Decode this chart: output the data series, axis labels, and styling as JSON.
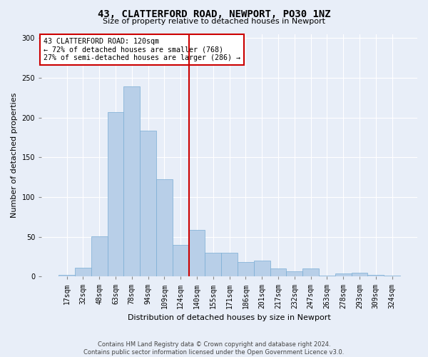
{
  "title": "43, CLATTERFORD ROAD, NEWPORT, PO30 1NZ",
  "subtitle": "Size of property relative to detached houses in Newport",
  "xlabel": "Distribution of detached houses by size in Newport",
  "ylabel": "Number of detached properties",
  "footer_line1": "Contains HM Land Registry data © Crown copyright and database right 2024.",
  "footer_line2": "Contains public sector information licensed under the Open Government Licence v3.0.",
  "annotation_line1": "43 CLATTERFORD ROAD: 120sqm",
  "annotation_line2": "← 72% of detached houses are smaller (768)",
  "annotation_line3": "27% of semi-detached houses are larger (286) →",
  "bar_labels": [
    "17sqm",
    "32sqm",
    "48sqm",
    "63sqm",
    "78sqm",
    "94sqm",
    "109sqm",
    "124sqm",
    "140sqm",
    "155sqm",
    "171sqm",
    "186sqm",
    "201sqm",
    "217sqm",
    "232sqm",
    "247sqm",
    "263sqm",
    "278sqm",
    "293sqm",
    "309sqm",
    "324sqm"
  ],
  "bar_values": [
    2,
    11,
    51,
    207,
    239,
    183,
    122,
    40,
    59,
    30,
    30,
    18,
    20,
    10,
    7,
    10,
    1,
    4,
    5,
    2,
    1
  ],
  "bar_color": "#b8cfe8",
  "bar_edge_color": "#7aadd4",
  "vline_color": "#cc0000",
  "vline_x": 7.5,
  "ylim": [
    0,
    305
  ],
  "yticks": [
    0,
    50,
    100,
    150,
    200,
    250,
    300
  ],
  "background_color": "#e8eef8",
  "grid_color": "#ffffff",
  "annotation_box_color": "#ffffff",
  "annotation_box_edge": "#cc0000",
  "title_fontsize": 10,
  "subtitle_fontsize": 8,
  "ylabel_fontsize": 8,
  "xlabel_fontsize": 8,
  "tick_fontsize": 7,
  "footer_fontsize": 6
}
